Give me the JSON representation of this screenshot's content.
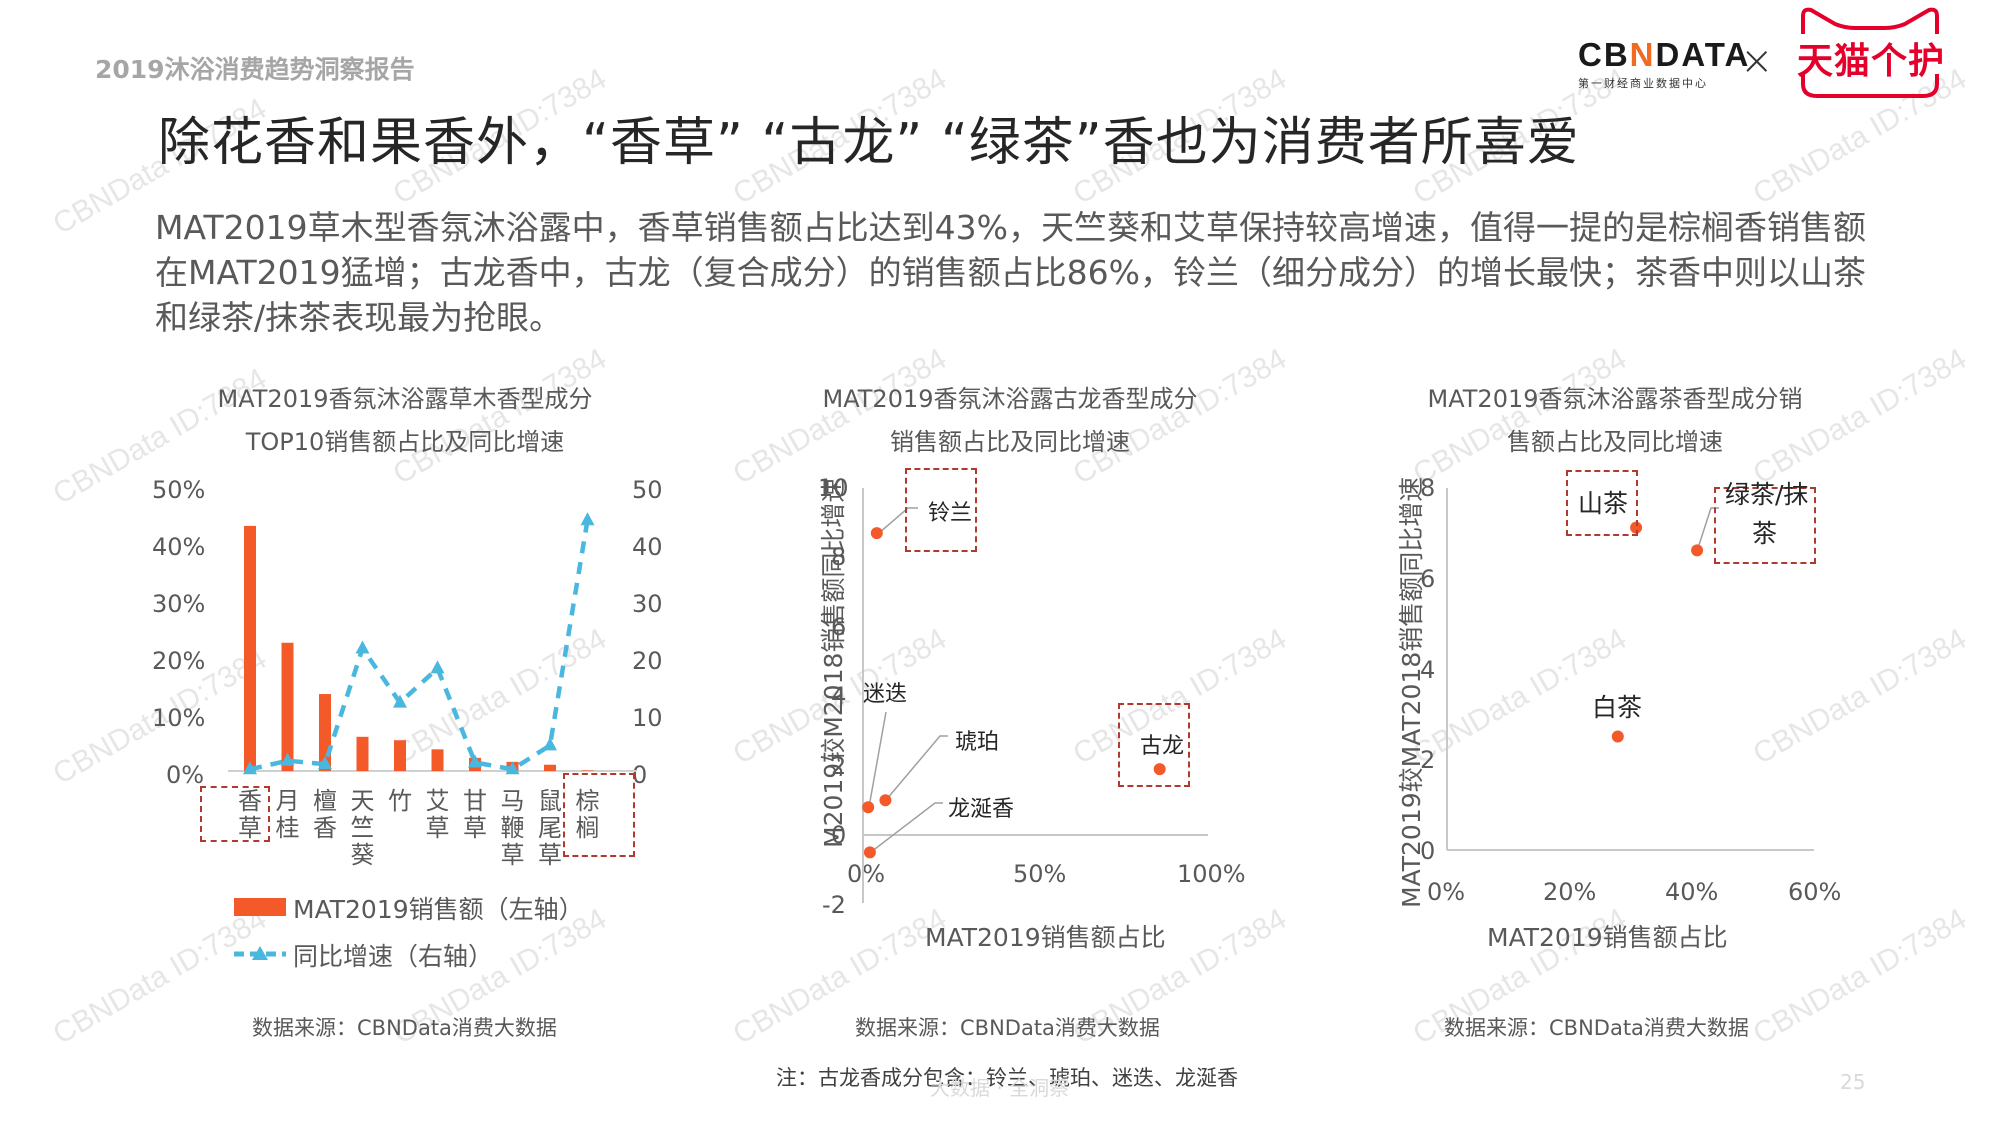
{
  "header": {
    "report_name": "2019沐浴消费趋势洞察报告",
    "logo_cbndata": "CB∕DATA",
    "logo_cbndata_parts": [
      "CB",
      "N",
      "DATA"
    ],
    "logo_cbndata_sub": "第一财经商业数据中心",
    "logo_times": "×",
    "logo_tmall": "天猫个护"
  },
  "title": "除花香和果香外，“香草” “古龙” “绿茶”香也为消费者所喜爱",
  "summary": "MAT2019草木型香氛沐浴露中，香草销售额占比达到43%，天竺葵和艾草保持较高增速，值得一提的是棕榈香销售额在MAT2019猛增；古龙香中，古龙（复合成分）的销售额占比86%，铃兰（细分成分）的增长最快；茶香中则以山茶和绿茶/抹茶表现最为抢眼。",
  "chart1": {
    "title_line1": "MAT2019香氛沐浴露草木香型成分",
    "title_line2": "TOP10销售额占比及同比增速",
    "left_ticks": [
      "50%",
      "40%",
      "30%",
      "20%",
      "10%",
      "0%"
    ],
    "right_ticks": [
      "50",
      "40",
      "30",
      "20",
      "10",
      "0"
    ],
    "legend_bar": "MAT2019销售额（左轴）",
    "legend_line": "同比增速（右轴）",
    "source": "数据来源：CBNData消费大数据"
  },
  "chart2": {
    "title_line1": "MAT2019香氛沐浴露古龙香型成分",
    "title_line2": "销售额占比及同比增速",
    "y_ticks": [
      "10",
      "8",
      "6",
      "4",
      "2",
      "0",
      "-2"
    ],
    "x_ticks": [
      "0%",
      "50%",
      "100%"
    ],
    "y_axis_title": "M2019较M2018销售额同比增速",
    "x_axis_title": "MAT2019销售额占比",
    "source": "数据来源：CBNData消费大数据",
    "note": "注：古龙香成分包含：铃兰、琥珀、迷迭、龙涎香"
  },
  "chart3": {
    "title_line1": "MAT2019香氛沐浴露茶香型成分销",
    "title_line2": "售额占比及同比增速",
    "y_ticks": [
      "8",
      "6",
      "4",
      "2",
      "0"
    ],
    "x_ticks": [
      "0%",
      "20%",
      "40%",
      "60%"
    ],
    "y_axis_title": "MAT2019较MAT2018销售额同比增速",
    "x_axis_title": "MAT2019销售额占比",
    "source": "数据来源：CBNData消费大数据",
    "label_green_line1": "绿茶/抹",
    "label_green_line2": "茶"
  },
  "footer": {
    "tagline": "大数据 · 全洞察",
    "page_number": "25"
  },
  "watermark_text": "CBNData ID:7384",
  "colors": {
    "bar": "#f4592a",
    "line": "#4ab7de",
    "highlight_box": "#b03a2e",
    "tmall_red": "#e4002b",
    "cbn_orange": "#f26a21"
  },
  "chart_data": [
    {
      "type": "bar",
      "title": "MAT2019香氛沐浴露草木香型成分TOP10销售额占比及同比增速",
      "categories": [
        "香草",
        "月桂",
        "檀香",
        "天竺葵",
        "竹",
        "艾草",
        "甘草",
        "马鞭草",
        "鼠尾草",
        "棕榈"
      ],
      "series": [
        {
          "name": "MAT2019销售额（左轴）",
          "type": "bar",
          "axis": "left",
          "unit": "%",
          "values": [
            43,
            22.5,
            13.5,
            6,
            5.4,
            3.8,
            2.3,
            1.6,
            1.1,
            0.1
          ]
        },
        {
          "name": "同比增速（右轴）",
          "type": "line",
          "axis": "right",
          "values": [
            0.3,
            1.8,
            1.2,
            21.5,
            12,
            18,
            1.5,
            0.3,
            4.5,
            44
          ]
        }
      ],
      "ylim_left": [
        0,
        50
      ],
      "ylim_right": [
        0,
        50
      ],
      "highlighted": [
        "香草",
        "棕榈"
      ],
      "xlabel": "",
      "ylabel": ""
    },
    {
      "type": "scatter",
      "title": "MAT2019香氛沐浴露古龙香型成分销售额占比及同比增速",
      "xlabel": "MAT2019销售额占比",
      "ylabel": "M2019较M2018销售额同比增速",
      "xlim": [
        0,
        100
      ],
      "ylim": [
        -2,
        10
      ],
      "points": [
        {
          "label": "铃兰",
          "x": 4,
          "y": 8.7
        },
        {
          "label": "迷迭",
          "x": 1.5,
          "y": 0.8
        },
        {
          "label": "琥珀",
          "x": 6.5,
          "y": 1.0
        },
        {
          "label": "龙涎香",
          "x": 2,
          "y": -0.5
        },
        {
          "label": "古龙",
          "x": 86,
          "y": 1.9
        }
      ],
      "highlighted": [
        "铃兰",
        "古龙"
      ]
    },
    {
      "type": "scatter",
      "title": "MAT2019香氛沐浴露茶香型成分销售额占比及同比增速",
      "xlabel": "MAT2019销售额占比",
      "ylabel": "MAT2019较MAT2018销售额同比增速",
      "xlim": [
        0,
        60
      ],
      "ylim": [
        0,
        8
      ],
      "points": [
        {
          "label": "山茶",
          "x": 31,
          "y": 7.1
        },
        {
          "label": "绿茶/抹茶",
          "x": 41,
          "y": 6.6
        },
        {
          "label": "白茶",
          "x": 28,
          "y": 2.5
        }
      ],
      "highlighted": [
        "山茶",
        "绿茶/抹茶"
      ]
    }
  ]
}
